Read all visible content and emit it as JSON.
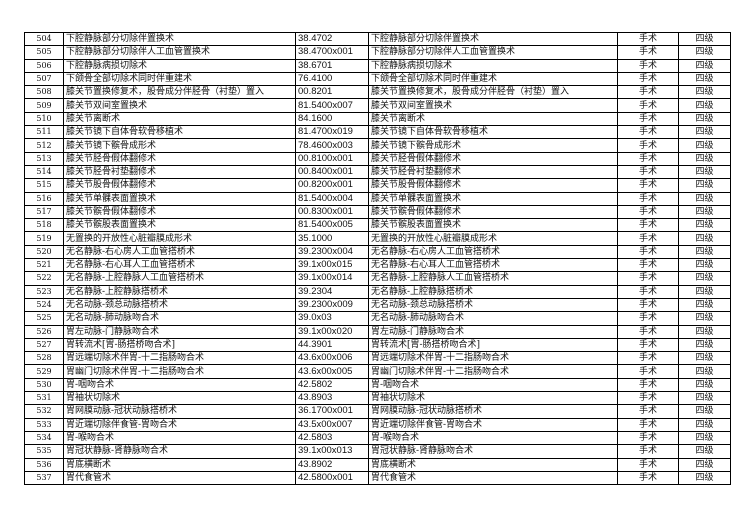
{
  "rows": [
    [
      "504",
      "下腔静脉部分切除伴置换术",
      "38.4702",
      "下腔静脉部分切除伴置换术",
      "手术",
      "四级"
    ],
    [
      "505",
      "下腔静脉部分切除伴人工血管置换术",
      "38.4700x001",
      "下腔静脉部分切除伴人工血管置换术",
      "手术",
      "四级"
    ],
    [
      "506",
      "下腔静脉病损切除术",
      "38.6701",
      "下腔静脉病损切除术",
      "手术",
      "四级"
    ],
    [
      "507",
      "下颌骨全部切除术同时伴重建术",
      "76.4100",
      "下颌骨全部切除术同时伴重建术",
      "手术",
      "四级"
    ],
    [
      "508",
      "膝关节置换修复术，股骨成分伴胫骨（衬垫）置入",
      "00.8201",
      "膝关节置换修复术，股骨成分伴胫骨（衬垫）置入",
      "手术",
      "四级"
    ],
    [
      "509",
      "膝关节双间室置换术",
      "81.5400x007",
      "膝关节双间室置换术",
      "手术",
      "四级"
    ],
    [
      "510",
      "膝关节离断术",
      "84.1600",
      "膝关节离断术",
      "手术",
      "四级"
    ],
    [
      "511",
      "膝关节镜下自体骨软骨移植术",
      "81.4700x019",
      "膝关节镜下自体骨软骨移植术",
      "手术",
      "四级"
    ],
    [
      "512",
      "膝关节镜下髌骨成形术",
      "78.4600x003",
      "膝关节镜下髌骨成形术",
      "手术",
      "四级"
    ],
    [
      "513",
      "膝关节胫骨假体翻修术",
      "00.8100x001",
      "膝关节胫骨假体翻修术",
      "手术",
      "四级"
    ],
    [
      "514",
      "膝关节胫骨衬垫翻修术",
      "00.8400x001",
      "膝关节胫骨衬垫翻修术",
      "手术",
      "四级"
    ],
    [
      "515",
      "膝关节股骨假体翻修术",
      "00.8200x001",
      "膝关节股骨假体翻修术",
      "手术",
      "四级"
    ],
    [
      "516",
      "膝关节单髁表面置换术",
      "81.5400x004",
      "膝关节单髁表面置换术",
      "手术",
      "四级"
    ],
    [
      "517",
      "膝关节髌骨假体翻修术",
      "00.8300x001",
      "膝关节髌骨假体翻修术",
      "手术",
      "四级"
    ],
    [
      "518",
      "膝关节髌股表面置换术",
      "81.5400x005",
      "膝关节髌股表面置换术",
      "手术",
      "四级"
    ],
    [
      "519",
      "无置换的开放性心脏瓣膜成形术",
      "35.1000",
      "无置换的开放性心脏瓣膜成形术",
      "手术",
      "四级"
    ],
    [
      "520",
      "无名静脉-右心房人工血管搭桥术",
      "39.2300x004",
      "无名静脉-右心房人工血管搭桥术",
      "手术",
      "四级"
    ],
    [
      "521",
      "无名静脉-右心耳人工血管搭桥术",
      "39.1x00x015",
      "无名静脉-右心耳人工血管搭桥术",
      "手术",
      "四级"
    ],
    [
      "522",
      "无名静脉-上腔静脉人工血管搭桥术",
      "39.1x00x014",
      "无名静脉-上腔静脉人工血管搭桥术",
      "手术",
      "四级"
    ],
    [
      "523",
      "无名静脉-上腔静脉搭桥术",
      "39.2304",
      "无名静脉-上腔静脉搭桥术",
      "手术",
      "四级"
    ],
    [
      "524",
      "无名动脉-颈总动脉搭桥术",
      "39.2300x009",
      "无名动脉-颈总动脉搭桥术",
      "手术",
      "四级"
    ],
    [
      "525",
      "无名动脉-肺动脉吻合术",
      "39.0x03",
      "无名动脉-肺动脉吻合术",
      "手术",
      "四级"
    ],
    [
      "526",
      "胃左动脉-门静脉吻合术",
      "39.1x00x020",
      "胃左动脉-门静脉吻合术",
      "手术",
      "四级"
    ],
    [
      "527",
      "胃转流术[胃-肠搭桥吻合术]",
      "44.3901",
      "胃转流术[胃-肠搭桥吻合术]",
      "手术",
      "四级"
    ],
    [
      "528",
      "胃远端切除术伴胃-十二指肠吻合术",
      "43.6x00x006",
      "胃远端切除术伴胃-十二指肠吻合术",
      "手术",
      "四级"
    ],
    [
      "529",
      "胃幽门切除术伴胃-十二指肠吻合术",
      "43.6x00x005",
      "胃幽门切除术伴胃-十二指肠吻合术",
      "手术",
      "四级"
    ],
    [
      "530",
      "胃-咽吻合术",
      "42.5802",
      "胃-咽吻合术",
      "手术",
      "四级"
    ],
    [
      "531",
      "胃袖状切除术",
      "43.8903",
      "胃袖状切除术",
      "手术",
      "四级"
    ],
    [
      "532",
      "胃网膜动脉-冠状动脉搭桥术",
      "36.1700x001",
      "胃网膜动脉-冠状动脉搭桥术",
      "手术",
      "四级"
    ],
    [
      "533",
      "胃近端切除伴食管-胃吻合术",
      "43.5x00x007",
      "胃近端切除伴食管-胃吻合术",
      "手术",
      "四级"
    ],
    [
      "534",
      "胃-喉吻合术",
      "42.5803",
      "胃-喉吻合术",
      "手术",
      "四级"
    ],
    [
      "535",
      "胃冠状静脉-肾静脉吻合术",
      "39.1x00x013",
      "胃冠状静脉-肾静脉吻合术",
      "手术",
      "四级"
    ],
    [
      "536",
      "胃底横断术",
      "43.8902",
      "胃底横断术",
      "手术",
      "四级"
    ],
    [
      "537",
      "胃代食管术",
      "42.5800x001",
      "胃代食管术",
      "手术",
      "四级"
    ]
  ]
}
